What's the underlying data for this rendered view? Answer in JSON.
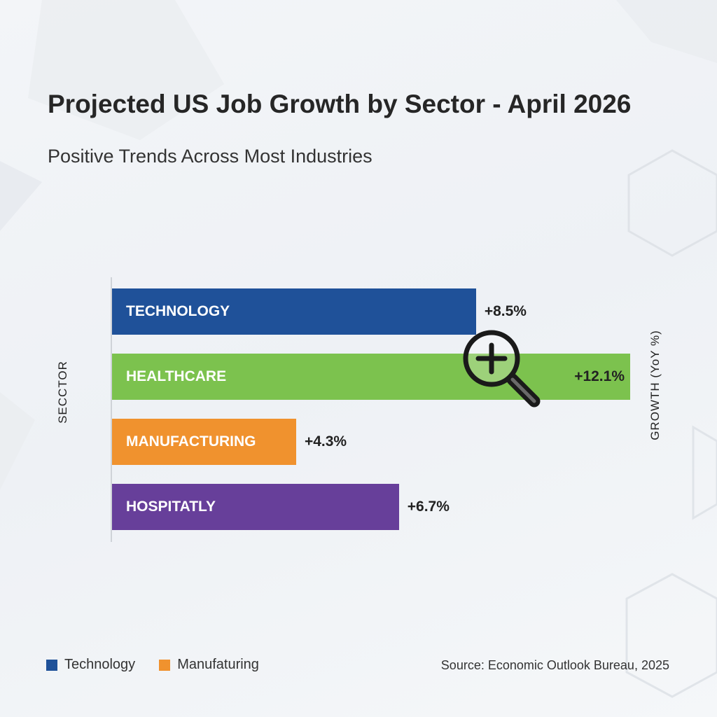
{
  "chart_data": {
    "type": "bar",
    "orientation": "horizontal",
    "title": "Projected US Job Growth by Sector - April 2026",
    "subtitle": "Positive Trends Across Most Industries",
    "ylabel": "SECCTOR",
    "xlabel": "GROWTH (YoY %)",
    "categories": [
      "TECHNOLOGY",
      "HEALTHCARE",
      "MANUFACTURING",
      "HOSPITATLY"
    ],
    "values": [
      8.5,
      12.1,
      4.3,
      6.7
    ],
    "value_labels": [
      "+8.5%",
      "+12.1%",
      "+4.3%",
      "+6.7%"
    ],
    "colors": [
      "#1f5199",
      "#7cc24e",
      "#f0922e",
      "#673f9a"
    ],
    "xlim": [
      0,
      12.1
    ],
    "grid": false,
    "legend": {
      "position": "bottom-left",
      "entries": [
        {
          "label": "Technology",
          "color": "#1f5199"
        },
        {
          "label": "Manufaturing",
          "color": "#f0922e"
        }
      ]
    },
    "source": "Source: Economic Outlook Bureau, 2025"
  },
  "icons": {
    "zoom": "zoom-in-magnifier-icon"
  }
}
